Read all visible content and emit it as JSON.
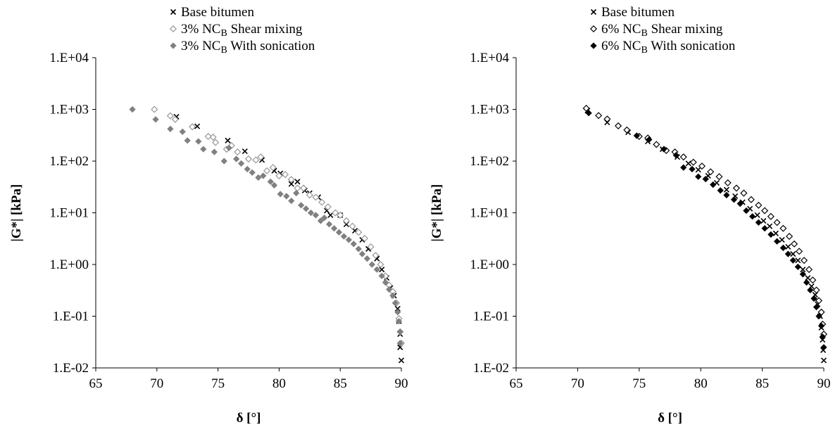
{
  "chart_data": [
    {
      "type": "scatter",
      "xlabel": "δ [°]",
      "ylabel": "|G*| [kPa]",
      "xlim": [
        65,
        90
      ],
      "ylim": [
        0.01,
        10000
      ],
      "y_scale": "log",
      "x_ticks": [
        "65",
        "70",
        "75",
        "80",
        "85",
        "90"
      ],
      "y_ticks": [
        "1.E-02",
        "1.E-01",
        "1.E+00",
        "1.E+01",
        "1.E+02",
        "1.E+03",
        "1.E+04"
      ],
      "legend_placement": "top",
      "grid": false,
      "series": [
        {
          "name": "Base bitumen",
          "name_parts": {
            "pre": "Base bitumen",
            "sub": "",
            "post": ""
          },
          "marker": "x",
          "color": "#000000",
          "points": [
            [
              71.6,
              720
            ],
            [
              73.3,
              470
            ],
            [
              75.8,
              250
            ],
            [
              77.2,
              155
            ],
            [
              78.6,
              105
            ],
            [
              79.6,
              65
            ],
            [
              80.1,
              58
            ],
            [
              81.0,
              36
            ],
            [
              81.5,
              40
            ],
            [
              82.1,
              27
            ],
            [
              82.5,
              24
            ],
            [
              83.2,
              20
            ],
            [
              83.9,
              11
            ],
            [
              84.2,
              9
            ],
            [
              85.0,
              9
            ],
            [
              85.5,
              6
            ],
            [
              86.2,
              4.5
            ],
            [
              86.8,
              3
            ],
            [
              87.3,
              2.0
            ],
            [
              88.0,
              1.3
            ],
            [
              88.4,
              0.8
            ],
            [
              88.8,
              0.55
            ],
            [
              89.1,
              0.35
            ],
            [
              89.4,
              0.25
            ],
            [
              89.7,
              0.14
            ],
            [
              89.8,
              0.08
            ],
            [
              89.9,
              0.045
            ],
            [
              89.9,
              0.025
            ],
            [
              90.0,
              0.014
            ]
          ]
        },
        {
          "name": "3% NCB Shear mixing",
          "name_parts": {
            "pre": "3% NC",
            "sub": "B",
            "post": " Shear mixing"
          },
          "marker": "diamond-open",
          "color": "#969696",
          "points": [
            [
              69.8,
              1000
            ],
            [
              71.1,
              750
            ],
            [
              71.5,
              640
            ],
            [
              72.9,
              460
            ],
            [
              74.2,
              300
            ],
            [
              74.6,
              290
            ],
            [
              74.8,
              230
            ],
            [
              75.7,
              170
            ],
            [
              76.1,
              200
            ],
            [
              76.6,
              150
            ],
            [
              77.5,
              110
            ],
            [
              78.1,
              105
            ],
            [
              78.5,
              120
            ],
            [
              79.0,
              65
            ],
            [
              79.5,
              75
            ],
            [
              80.0,
              52
            ],
            [
              80.5,
              55
            ],
            [
              81.0,
              44
            ],
            [
              81.5,
              30
            ],
            [
              82.0,
              30
            ],
            [
              82.5,
              22
            ],
            [
              83.0,
              20
            ],
            [
              83.5,
              16
            ],
            [
              84.0,
              13
            ],
            [
              84.6,
              10
            ],
            [
              85.0,
              9
            ],
            [
              85.5,
              7
            ],
            [
              86.0,
              5.5
            ],
            [
              86.5,
              4.2
            ],
            [
              87.0,
              3.2
            ],
            [
              87.5,
              2.2
            ],
            [
              87.9,
              1.5
            ],
            [
              88.3,
              1.0
            ],
            [
              88.7,
              0.6
            ],
            [
              89.0,
              0.4
            ],
            [
              89.3,
              0.3
            ],
            [
              89.6,
              0.18
            ],
            [
              89.8,
              0.09
            ],
            [
              89.9,
              0.05
            ],
            [
              90.0,
              0.03
            ]
          ]
        },
        {
          "name": "3% NCB With sonication",
          "name_parts": {
            "pre": "3% NC",
            "sub": "B",
            "post": " With sonication"
          },
          "marker": "diamond-filled",
          "color": "#808080",
          "points": [
            [
              68.0,
              1000
            ],
            [
              69.9,
              640
            ],
            [
              71.1,
              420
            ],
            [
              72.1,
              370
            ],
            [
              72.5,
              250
            ],
            [
              73.4,
              240
            ],
            [
              73.8,
              170
            ],
            [
              74.7,
              150
            ],
            [
              75.5,
              100
            ],
            [
              75.9,
              180
            ],
            [
              76.5,
              110
            ],
            [
              76.9,
              90
            ],
            [
              77.4,
              70
            ],
            [
              77.8,
              60
            ],
            [
              78.3,
              48
            ],
            [
              78.7,
              52
            ],
            [
              79.3,
              40
            ],
            [
              79.6,
              34
            ],
            [
              80.1,
              23
            ],
            [
              80.6,
              21
            ],
            [
              81.0,
              17
            ],
            [
              81.4,
              24
            ],
            [
              81.8,
              14
            ],
            [
              82.2,
              12
            ],
            [
              82.6,
              10
            ],
            [
              83.0,
              9
            ],
            [
              83.4,
              7
            ],
            [
              83.7,
              8
            ],
            [
              84.1,
              6
            ],
            [
              84.5,
              5
            ],
            [
              84.9,
              4.2
            ],
            [
              85.3,
              3.5
            ],
            [
              85.7,
              3
            ],
            [
              86.1,
              2.5
            ],
            [
              86.5,
              2
            ],
            [
              86.8,
              1.6
            ],
            [
              87.2,
              1.3
            ],
            [
              87.6,
              1
            ],
            [
              88.0,
              0.8
            ],
            [
              88.4,
              0.6
            ],
            [
              88.7,
              0.45
            ],
            [
              89.0,
              0.33
            ],
            [
              89.3,
              0.25
            ],
            [
              89.5,
              0.18
            ],
            [
              89.7,
              0.12
            ],
            [
              89.8,
              0.08
            ],
            [
              89.9,
              0.05
            ],
            [
              89.9,
              0.03
            ]
          ]
        }
      ]
    },
    {
      "type": "scatter",
      "xlabel": "δ [°]",
      "ylabel": "|G*| [kPa]",
      "xlim": [
        65,
        90
      ],
      "ylim": [
        0.01,
        10000
      ],
      "y_scale": "log",
      "x_ticks": [
        "65",
        "70",
        "75",
        "80",
        "85",
        "90"
      ],
      "y_ticks": [
        "1.E-02",
        "1.E-01",
        "1.E+00",
        "1.E+01",
        "1.E+02",
        "1.E+03",
        "1.E+04"
      ],
      "legend_placement": "top",
      "grid": false,
      "series": [
        {
          "name": "Base bitumen",
          "name_parts": {
            "pre": "Base bitumen",
            "sub": "",
            "post": ""
          },
          "marker": "x",
          "color": "#000000",
          "points": [
            [
              70.8,
              950
            ],
            [
              72.4,
              560
            ],
            [
              74.1,
              360
            ],
            [
              75.7,
              240
            ],
            [
              76.9,
              170
            ],
            [
              78.1,
              120
            ],
            [
              79.0,
              90
            ],
            [
              79.8,
              68
            ],
            [
              80.6,
              52
            ],
            [
              81.3,
              38
            ],
            [
              82.1,
              28
            ],
            [
              82.8,
              21
            ],
            [
              83.4,
              16
            ],
            [
              84.0,
              12
            ],
            [
              84.6,
              9
            ],
            [
              85.1,
              7
            ],
            [
              85.6,
              5.5
            ],
            [
              86.1,
              4
            ],
            [
              86.6,
              3
            ],
            [
              87.1,
              2.2
            ],
            [
              87.5,
              1.6
            ],
            [
              87.9,
              1.2
            ],
            [
              88.3,
              0.8
            ],
            [
              88.7,
              0.55
            ],
            [
              89.0,
              0.38
            ],
            [
              89.3,
              0.26
            ],
            [
              89.5,
              0.17
            ],
            [
              89.7,
              0.1
            ],
            [
              89.8,
              0.06
            ],
            [
              89.9,
              0.035
            ],
            [
              89.95,
              0.022
            ],
            [
              90.0,
              0.014
            ]
          ]
        },
        {
          "name": "6% NCB Shear mixing",
          "name_parts": {
            "pre": "6% NC",
            "sub": "B",
            "post": " Shear mixing"
          },
          "marker": "diamond-open",
          "color": "#000000",
          "points": [
            [
              70.7,
              1050
            ],
            [
              71.7,
              760
            ],
            [
              72.4,
              650
            ],
            [
              73.3,
              480
            ],
            [
              74.0,
              400
            ],
            [
              75.0,
              300
            ],
            [
              75.7,
              280
            ],
            [
              76.4,
              210
            ],
            [
              77.2,
              160
            ],
            [
              77.9,
              150
            ],
            [
              78.6,
              120
            ],
            [
              79.4,
              95
            ],
            [
              80.1,
              80
            ],
            [
              80.8,
              62
            ],
            [
              81.5,
              50
            ],
            [
              82.2,
              38
            ],
            [
              82.9,
              30
            ],
            [
              83.5,
              24
            ],
            [
              84.1,
              18
            ],
            [
              84.7,
              14
            ],
            [
              85.2,
              11
            ],
            [
              85.7,
              8.5
            ],
            [
              86.2,
              6.5
            ],
            [
              86.7,
              5
            ],
            [
              87.2,
              3.5
            ],
            [
              87.6,
              2.5
            ],
            [
              88.0,
              1.8
            ],
            [
              88.4,
              1.2
            ],
            [
              88.8,
              0.8
            ],
            [
              89.1,
              0.5
            ],
            [
              89.4,
              0.32
            ],
            [
              89.6,
              0.2
            ],
            [
              89.8,
              0.12
            ],
            [
              89.9,
              0.07
            ],
            [
              90.0,
              0.045
            ]
          ]
        },
        {
          "name": "6% NCB With sonication",
          "name_parts": {
            "pre": "6% NC",
            "sub": "B",
            "post": " With sonication"
          },
          "marker": "diamond-filled",
          "color": "#000000",
          "points": [
            [
              70.9,
              850
            ],
            [
              74.8,
              310
            ],
            [
              75.8,
              260
            ],
            [
              77.0,
              170
            ],
            [
              78.0,
              130
            ],
            [
              78.6,
              75
            ],
            [
              79.3,
              70
            ],
            [
              79.8,
              50
            ],
            [
              80.4,
              45
            ],
            [
              81.0,
              35
            ],
            [
              81.6,
              27
            ],
            [
              82.1,
              22
            ],
            [
              82.7,
              18
            ],
            [
              83.2,
              15
            ],
            [
              83.7,
              11
            ],
            [
              84.2,
              8.5
            ],
            [
              84.7,
              6.5
            ],
            [
              85.2,
              5
            ],
            [
              85.7,
              3.8
            ],
            [
              86.2,
              2.8
            ],
            [
              86.7,
              2.1
            ],
            [
              87.1,
              1.6
            ],
            [
              87.5,
              1.2
            ],
            [
              87.9,
              0.9
            ],
            [
              88.3,
              0.65
            ],
            [
              88.6,
              0.45
            ],
            [
              88.9,
              0.32
            ],
            [
              89.2,
              0.22
            ],
            [
              89.4,
              0.15
            ],
            [
              89.6,
              0.1
            ],
            [
              89.8,
              0.065
            ],
            [
              89.9,
              0.04
            ],
            [
              90.0,
              0.025
            ]
          ]
        }
      ]
    }
  ]
}
